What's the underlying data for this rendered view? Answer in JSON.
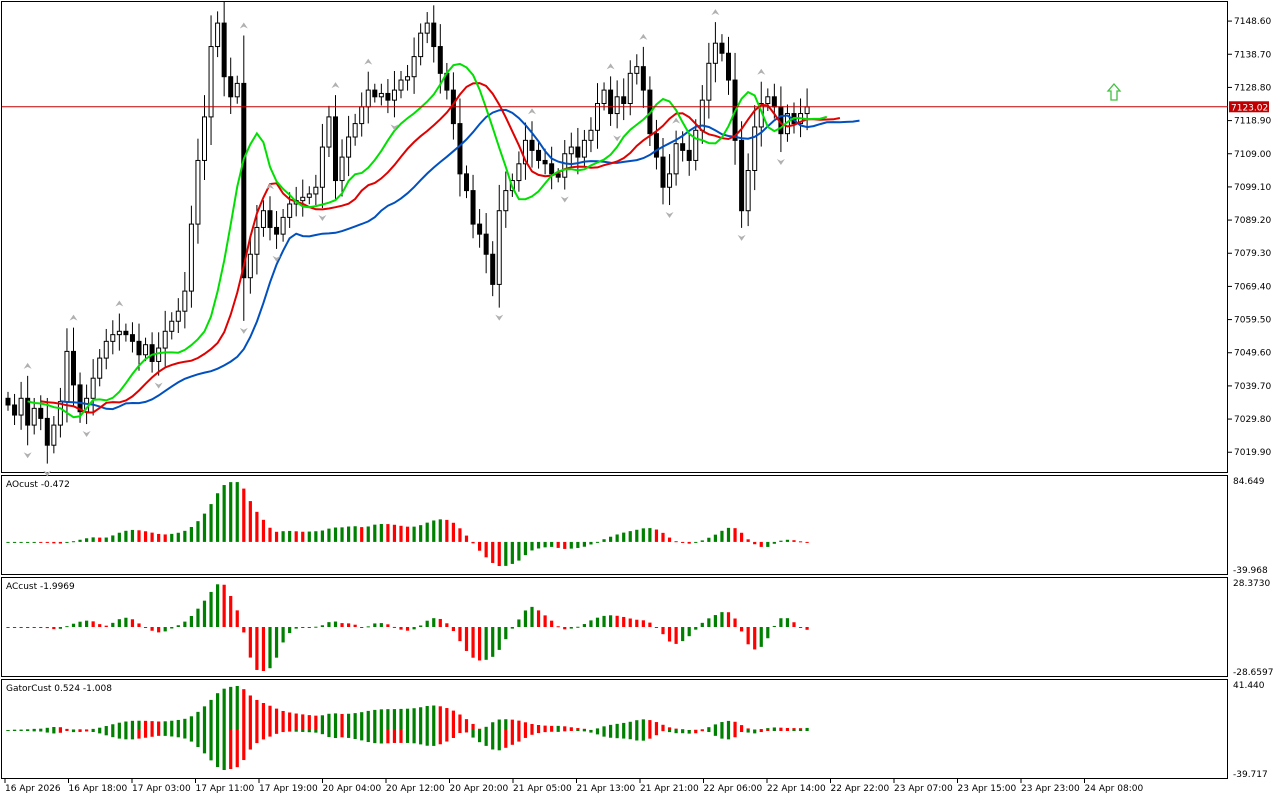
{
  "chart_data": {
    "type": "candlestick",
    "price_axis": {
      "ticks": [
        "7148.60",
        "7138.70",
        "7128.80",
        "7118.90",
        "7109.00",
        "7099.10",
        "7089.20",
        "7079.30",
        "7069.40",
        "7059.50",
        "7049.60",
        "7039.70",
        "7029.80",
        "7019.90"
      ],
      "ylim": [
        7014.0,
        7154.0
      ],
      "current_price": "7123.02",
      "current_price_color": "#c00000"
    },
    "time_axis": {
      "ticks": [
        "16 Apr 2026",
        "16 Apr 18:00",
        "17 Apr 03:00",
        "17 Apr 11:00",
        "17 Apr 19:00",
        "20 Apr 04:00",
        "20 Apr 12:00",
        "20 Apr 20:00",
        "21 Apr 05:00",
        "21 Apr 13:00",
        "21 Apr 21:00",
        "22 Apr 06:00",
        "22 Apr 14:00",
        "22 Apr 22:00",
        "23 Apr 07:00",
        "23 Apr 15:00",
        "23 Apr 23:00",
        "24 Apr 08:00"
      ]
    },
    "close": [
      7034,
      7031,
      7036,
      7028,
      7033,
      7030,
      7022,
      7028,
      7035,
      7050,
      7040,
      7032,
      7036,
      7042,
      7048,
      7053,
      7055,
      7056,
      7055,
      7053,
      7049,
      7052,
      7047,
      7051,
      7056,
      7059,
      7062,
      7068,
      7088,
      7107,
      7120,
      7141,
      7148,
      7132,
      7126,
      7130,
      7072,
      7079,
      7087,
      7092,
      7087,
      7085,
      7090,
      7094,
      7095,
      7096,
      7097,
      7099,
      7111,
      7120,
      7101,
      7108,
      7114,
      7118,
      7123,
      7128,
      7126,
      7127,
      7125,
      7128,
      7131,
      7132,
      7138,
      7145,
      7148,
      7141,
      7133,
      7128,
      7118,
      7103,
      7098,
      7088,
      7085,
      7079,
      7070,
      7092,
      7098,
      7101,
      7106,
      7113,
      7110,
      7107,
      7106,
      7103,
      7102,
      7109,
      7111,
      7108,
      7113,
      7116,
      7124,
      7128,
      7121,
      7126,
      7124,
      7133,
      7135,
      7128,
      7115,
      7108,
      7099,
      7103,
      7112,
      7110,
      7107,
      7116,
      7125,
      7136,
      7142,
      7139,
      7131,
      7113,
      7092,
      7104,
      7117,
      7124,
      7126,
      7123,
      7115,
      7121,
      7118,
      7121,
      7123
    ]
  },
  "indicators": {
    "ao": {
      "label": "AOcust -0.472",
      "ymax": "84.649",
      "ymin": "-39.968"
    },
    "ac": {
      "label": "ACcust -1.9969",
      "ymax": "28.3730",
      "ymin": "-28.6597"
    },
    "gator": {
      "label": "GatorCust 0.524 -1.008",
      "ymax": "41.440",
      "ymin": "-39.717"
    }
  },
  "colors": {
    "bull": "#008000",
    "bear": "#ff0000",
    "lips": "#00e000",
    "teeth": "#e00000",
    "jaw": "#0050c0",
    "buy_arrow": "#40c040"
  }
}
